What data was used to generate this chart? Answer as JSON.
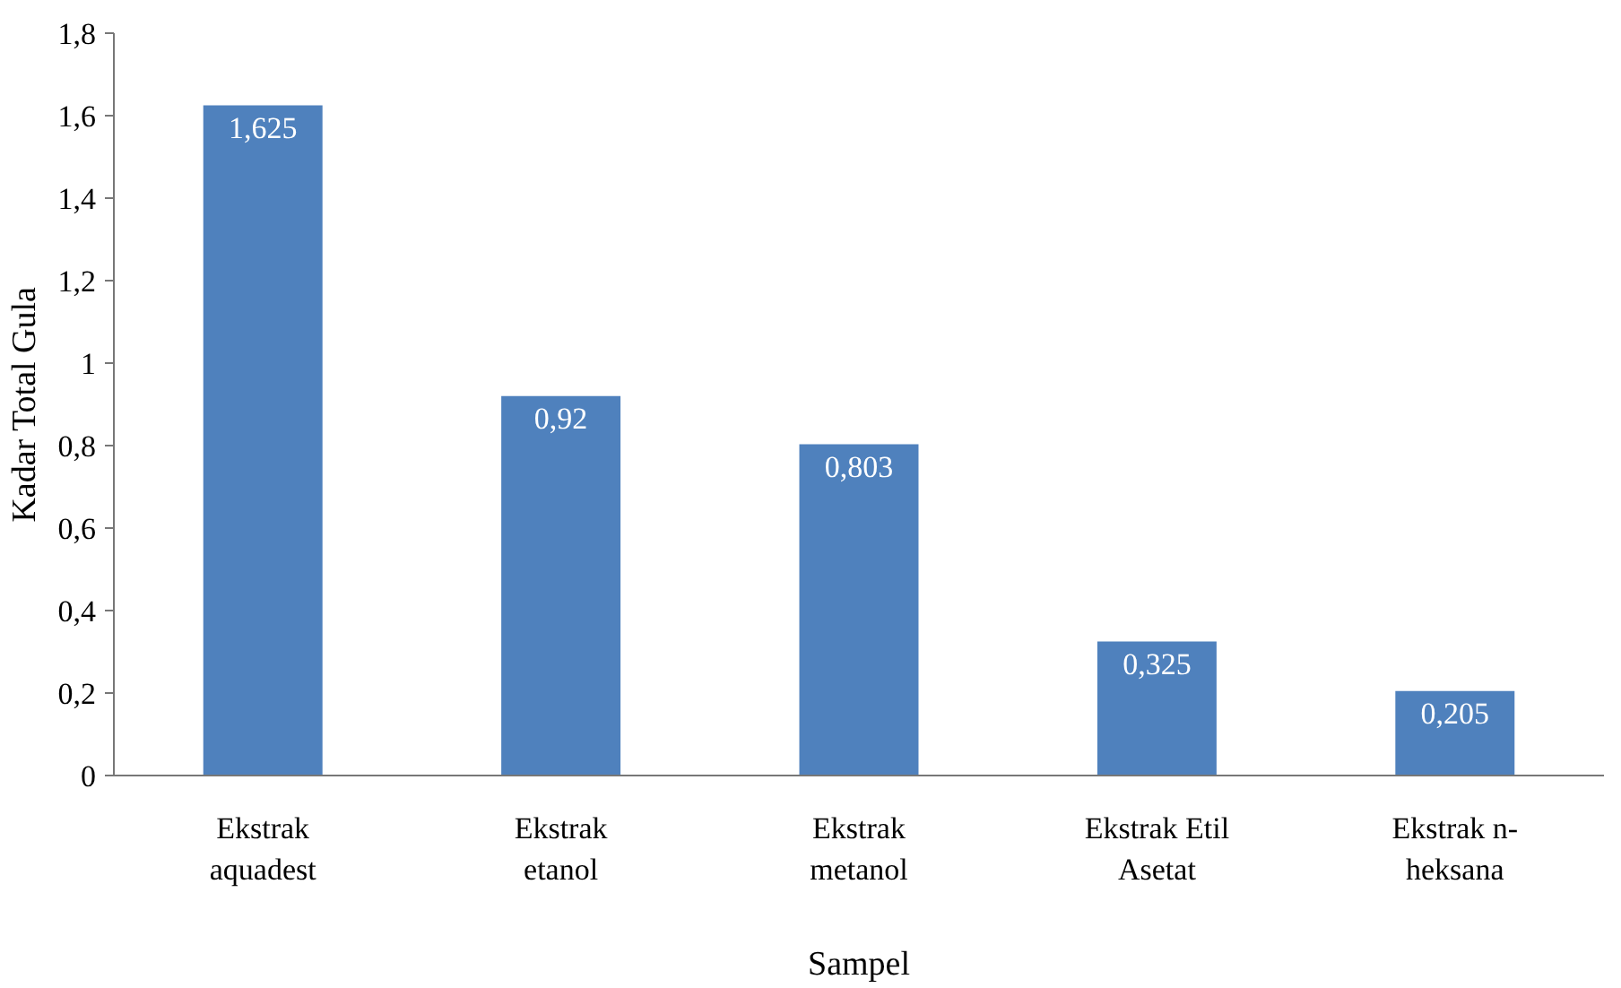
{
  "chart_data": {
    "type": "bar",
    "xlabel": "Sampel",
    "ylabel": "Kadar Total Gula",
    "categories": [
      "Ekstrak\naquadest",
      "Ekstrak\netanol",
      "Ekstrak\nmetanol",
      "Ekstrak Etil\nAsetat",
      "Ekstrak n-\nheksana"
    ],
    "values": [
      1.625,
      0.92,
      0.803,
      0.325,
      0.205
    ],
    "value_labels": [
      "1,625",
      "0,92",
      "0,803",
      "0,325",
      "0,205"
    ],
    "color": "#4f81bd",
    "ylim": [
      0,
      1.8
    ],
    "yticks": [
      0,
      {
        "value": 0.2,
        "label": "0,2"
      },
      {
        "value": 0.4,
        "label": "0,4"
      },
      {
        "value": 0.6,
        "label": "0,6"
      },
      {
        "value": 0.8,
        "label": "0,8"
      },
      1,
      {
        "value": 1.2,
        "label": "1,2"
      },
      {
        "value": 1.4,
        "label": "1,4"
      },
      {
        "value": 1.6,
        "label": "1,6"
      },
      {
        "value": 1.8,
        "label": "1,8"
      }
    ],
    "grid": false
  }
}
